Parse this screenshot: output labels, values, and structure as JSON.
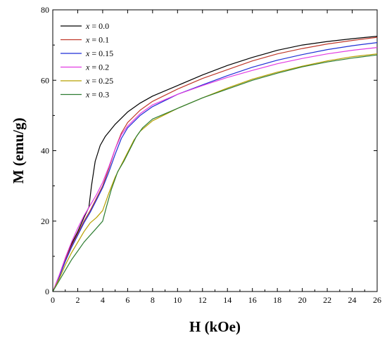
{
  "chart_data": {
    "type": "line",
    "title": "",
    "xlabel": "H (kOe)",
    "ylabel": "M (emu/g)",
    "xlim": [
      0,
      26
    ],
    "ylim": [
      0,
      80
    ],
    "xticks": [
      "0",
      "2",
      "4",
      "6",
      "8",
      "10",
      "12",
      "14",
      "16",
      "18",
      "20",
      "22",
      "24",
      "26"
    ],
    "yticks": [
      "0",
      "20",
      "40",
      "60",
      "80"
    ],
    "grid": false,
    "legend": "top-left",
    "series": [
      {
        "name": "x = 0.0",
        "var": "x",
        "eq": " = ",
        "val": "0.0",
        "color": "#000000",
        "x": [
          0,
          0.5,
          1,
          1.5,
          2,
          2.5,
          2.9,
          3.1,
          3.4,
          3.8,
          4.2,
          5,
          6,
          7,
          8,
          10,
          12,
          14,
          16,
          18,
          20,
          22,
          24,
          26
        ],
        "y": [
          0,
          4,
          9,
          13.5,
          17,
          21,
          24,
          30,
          37,
          41.5,
          44,
          47.5,
          51,
          53.5,
          55.5,
          58.5,
          61.5,
          64.2,
          66.5,
          68.5,
          70,
          71,
          71.8,
          72.5
        ]
      },
      {
        "name": "x = 0.1",
        "var": "x",
        "eq": " = ",
        "val": "0.1",
        "color": "#c0392b",
        "x": [
          0,
          0.5,
          1,
          1.5,
          2,
          2.5,
          3,
          3.5,
          4,
          4.5,
          5,
          5.5,
          6,
          7,
          8,
          10,
          12,
          14,
          16,
          18,
          20,
          22,
          24,
          26
        ],
        "y": [
          0,
          4,
          9,
          13,
          16.5,
          20,
          23,
          26.5,
          30,
          35,
          40.5,
          45,
          48,
          51.5,
          54,
          57.5,
          60.5,
          63,
          65.5,
          67.5,
          69,
          70.3,
          71.3,
          72.2
        ]
      },
      {
        "name": "x = 0.15",
        "var": "x",
        "eq": " = ",
        "val": "0.15",
        "color": "#1f2fd6",
        "x": [
          0,
          0.5,
          1,
          1.5,
          2,
          2.5,
          3,
          3.5,
          4,
          4.5,
          5,
          5.5,
          6,
          7,
          8,
          10,
          12,
          14,
          16,
          18,
          20,
          22,
          24,
          26
        ],
        "y": [
          0,
          4,
          8.5,
          12.5,
          16,
          19.5,
          22.5,
          26,
          29.5,
          34,
          39,
          43.5,
          46.5,
          50,
          52.5,
          56,
          58.7,
          61.3,
          63.7,
          65.7,
          67.3,
          68.7,
          69.8,
          70.7
        ]
      },
      {
        "name": "x = 0.2",
        "var": "x",
        "eq": " = ",
        "val": "0.2",
        "color": "#e23be2",
        "x": [
          0,
          0.5,
          1,
          1.5,
          2,
          2.5,
          3,
          3.5,
          4,
          4.5,
          5,
          5.5,
          6,
          7,
          8,
          10,
          12,
          14,
          16,
          18,
          20,
          22,
          24,
          26
        ],
        "y": [
          0,
          4.5,
          9.5,
          14,
          18,
          21.5,
          24.5,
          27.5,
          31,
          35.5,
          40.5,
          44.5,
          47,
          50.5,
          53,
          56,
          58.5,
          60.8,
          62.8,
          64.7,
          66.2,
          67.5,
          68.5,
          69.3
        ]
      },
      {
        "name": "x = 0.25",
        "var": "x",
        "eq": " = ",
        "val": "0.25",
        "color": "#b8a000",
        "x": [
          0,
          0.5,
          1,
          1.5,
          2,
          2.5,
          3,
          3.5,
          4,
          4.5,
          5,
          5.5,
          6,
          6.5,
          7,
          8,
          10,
          12,
          14,
          16,
          18,
          20,
          22,
          24,
          26
        ],
        "y": [
          0,
          3.5,
          7.5,
          11,
          14,
          17,
          19.5,
          21,
          23,
          28,
          32.5,
          36,
          39.5,
          43,
          45.5,
          48.5,
          52,
          55,
          57.8,
          60.3,
          62.3,
          64,
          65.5,
          66.7,
          67.5
        ]
      },
      {
        "name": "x = 0.3",
        "var": "x",
        "eq": " = ",
        "val": "0.3",
        "color": "#2e7d32",
        "x": [
          0,
          0.5,
          1,
          1.5,
          2,
          2.5,
          3,
          3.5,
          4,
          4.3,
          4.7,
          5.2,
          5.7,
          6.2,
          6.7,
          7.2,
          8,
          10,
          12,
          14,
          16,
          18,
          20,
          22,
          24,
          26
        ],
        "y": [
          0,
          3,
          6,
          9,
          11.5,
          14,
          16,
          18,
          20,
          24,
          29,
          34,
          37,
          40.5,
          44,
          46.5,
          49,
          52,
          55,
          57.5,
          60,
          62,
          63.8,
          65.2,
          66.3,
          67.2
        ]
      }
    ]
  }
}
